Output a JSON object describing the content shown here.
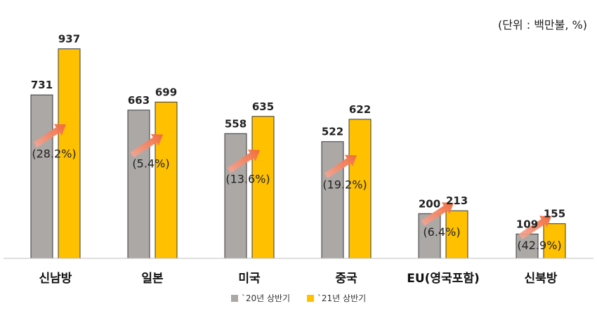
{
  "chart_data": {
    "type": "bar",
    "unit_label": "(단위 : 백만불, %)",
    "categories": [
      "신남방",
      "일본",
      "미국",
      "중국",
      "EU(영국포함)",
      "신북방"
    ],
    "series": [
      {
        "name": "`20년 상반기",
        "values": [
          731,
          663,
          558,
          522,
          200,
          109
        ]
      },
      {
        "name": "`21년 상반기",
        "values": [
          937,
          699,
          635,
          622,
          213,
          155
        ]
      }
    ],
    "growth_labels": [
      "(28.2%)",
      "(5.4%)",
      "(13.6%)",
      "(19.2%)",
      "(6.4%)",
      "(42.9%)"
    ],
    "ylim": [
      0,
      1000
    ],
    "legend_position": "bottom",
    "grid": false
  },
  "colors": {
    "series_2020": "#ABA8A6",
    "series_2021": "#FFC000",
    "arrow": "#F26B3A",
    "axis": "#BFBFBF"
  }
}
